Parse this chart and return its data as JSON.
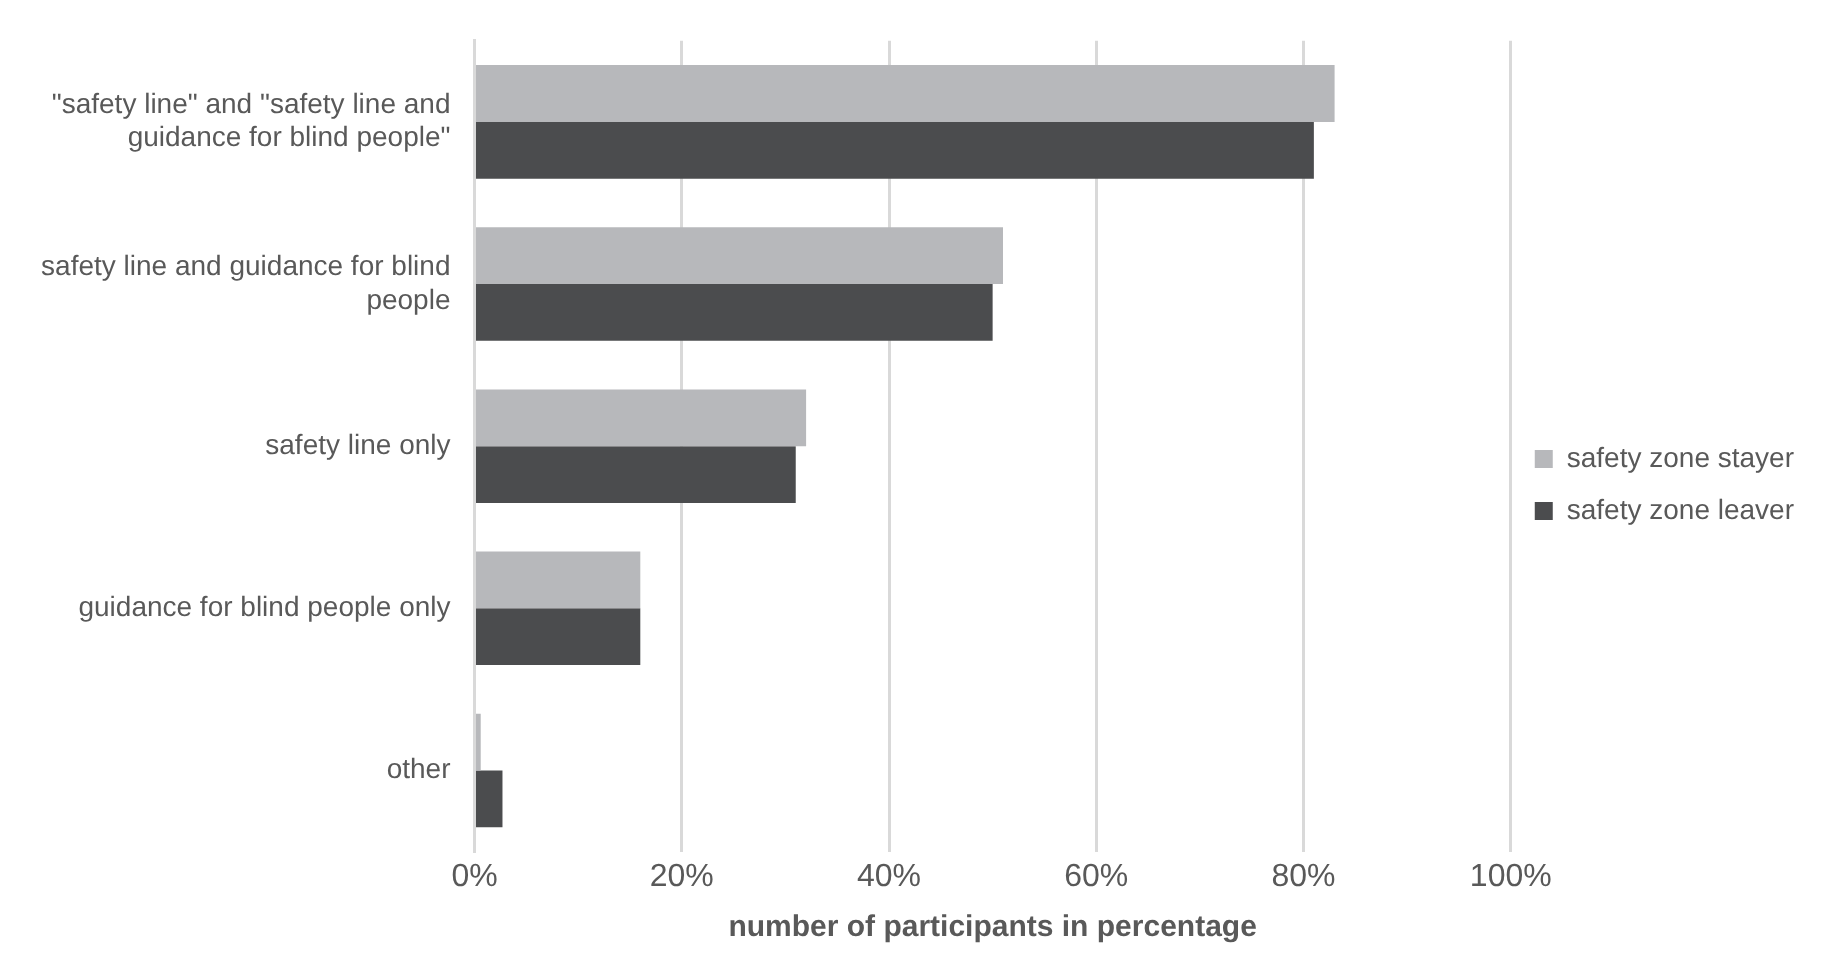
{
  "chart_data": {
    "type": "bar",
    "orientation": "horizontal",
    "xlabel": "number of participants in percentage",
    "categories": [
      "\"safety line\" and \"safety line and guidance for blind people\"",
      "safety line and guidance for blind people",
      "safety line only",
      "guidance for blind people only",
      "other"
    ],
    "series": [
      {
        "name": "safety zone stayer",
        "color": "#b7b8bb",
        "values": [
          83,
          51,
          32,
          16,
          0.6
        ]
      },
      {
        "name": "safety zone leaver",
        "color": "#4b4c4e",
        "values": [
          81,
          50,
          31,
          16,
          2.7
        ]
      }
    ],
    "xlim": [
      0,
      100
    ],
    "xticks": [
      {
        "value": 0,
        "label": "0%"
      },
      {
        "value": 20,
        "label": "20%"
      },
      {
        "value": 40,
        "label": "40%"
      },
      {
        "value": 60,
        "label": "60%"
      },
      {
        "value": 80,
        "label": "80%"
      },
      {
        "value": 100,
        "label": "100%"
      }
    ],
    "grid": "x",
    "legend": "right"
  }
}
